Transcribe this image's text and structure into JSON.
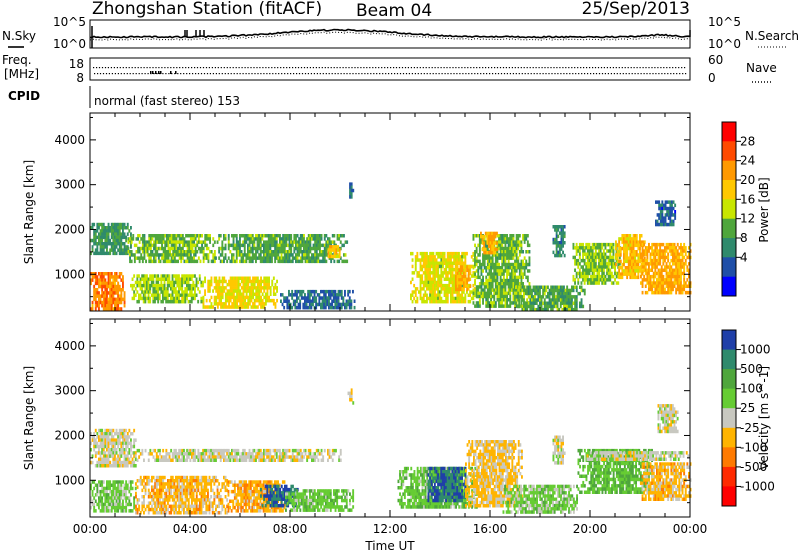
{
  "header": {
    "station": "Zhongshan Station (fitACF)",
    "beam": "Beam 04",
    "date": "25/Sep/2013"
  },
  "top_panels": {
    "nsky_label": "N.Sky",
    "nsearch_label": "N.Search",
    "noise_ticks_left": [
      "10^5",
      "10^0"
    ],
    "noise_ticks_right": [
      "10^5",
      "10^0"
    ],
    "freq_label_line1": "Freq.",
    "freq_label_line2": "[MHz]",
    "freq_ticks": [
      "18",
      "8"
    ],
    "nave_label": "Nave",
    "nave_ticks": [
      "60",
      "0"
    ],
    "cpid_label": "CPID",
    "cpid_text": "normal (fast stereo) 153"
  },
  "range_panels": {
    "ylabel": "Slant Range [km]",
    "yticks": [
      "4000",
      "3000",
      "2000",
      "1000"
    ]
  },
  "power_bar": {
    "label": "Power [dB]",
    "ticks": [
      "28",
      "24",
      "20",
      "16",
      "12",
      "8",
      "4"
    ],
    "colors": [
      "#ff0000",
      "#ff4a00",
      "#ff9900",
      "#ffc800",
      "#c8e600",
      "#4fa63c",
      "#2f8a6c",
      "#1f4fa8",
      "#0000ff"
    ]
  },
  "velocity_bar": {
    "label": "Velocity [m s^-1]",
    "ticks": [
      "1000",
      "500",
      "100",
      "25",
      "-25",
      "-100",
      "-500",
      "-1000"
    ],
    "colors": [
      "#1f3fa8",
      "#2f8a6c",
      "#4fa63c",
      "#66cc33",
      "#c8c8c0",
      "#ffb400",
      "#ff7a00",
      "#ff2a00",
      "#ff0000"
    ]
  },
  "xaxis": {
    "ticks": [
      "00:00",
      "04:00",
      "08:00",
      "12:00",
      "16:00",
      "20:00",
      "00:00"
    ],
    "label": "Time UT"
  },
  "chart_data": [
    {
      "type": "heatmap",
      "name": "power",
      "xlabel": "Time UT",
      "ylabel": "Slant Range [km]",
      "xlim": [
        0,
        24
      ],
      "ylim": [
        180,
        4600
      ],
      "colorbar_label": "Power [dB]",
      "clim": [
        0,
        32
      ],
      "regions": [
        {
          "t0": 0.0,
          "t1": 1.6,
          "r0": 1500,
          "r1": 2150,
          "v": 10
        },
        {
          "t0": 0.0,
          "t1": 1.4,
          "r0": 250,
          "r1": 1050,
          "v": 24
        },
        {
          "t0": 1.6,
          "t1": 4.5,
          "r0": 400,
          "r1": 1000,
          "v": 15
        },
        {
          "t0": 1.5,
          "t1": 5.0,
          "r0": 1300,
          "r1": 1900,
          "v": 13
        },
        {
          "t0": 4.5,
          "t1": 7.5,
          "r0": 250,
          "r1": 950,
          "v": 18
        },
        {
          "t0": 5.0,
          "t1": 10.3,
          "r0": 1300,
          "r1": 1900,
          "v": 12
        },
        {
          "t0": 9.5,
          "t1": 10.0,
          "r0": 1400,
          "r1": 1650,
          "v": 20
        },
        {
          "t0": 7.6,
          "t1": 10.6,
          "r0": 250,
          "r1": 650,
          "v": 7
        },
        {
          "t0": 10.3,
          "t1": 10.5,
          "r0": 2750,
          "r1": 3050,
          "v": 7
        },
        {
          "t0": 12.8,
          "t1": 15.4,
          "r0": 400,
          "r1": 1500,
          "v": 17
        },
        {
          "t0": 14.6,
          "t1": 15.2,
          "r0": 650,
          "r1": 1200,
          "v": 22
        },
        {
          "t0": 15.3,
          "t1": 17.6,
          "r0": 300,
          "r1": 1900,
          "v": 13
        },
        {
          "t0": 15.6,
          "t1": 16.3,
          "r0": 1500,
          "r1": 1950,
          "v": 22
        },
        {
          "t0": 17.0,
          "t1": 19.8,
          "r0": 200,
          "r1": 750,
          "v": 12
        },
        {
          "t0": 18.5,
          "t1": 19.0,
          "r0": 1400,
          "r1": 2100,
          "v": 9
        },
        {
          "t0": 19.3,
          "t1": 21.2,
          "r0": 800,
          "r1": 1700,
          "v": 14
        },
        {
          "t0": 21.0,
          "t1": 22.2,
          "r0": 900,
          "r1": 1900,
          "v": 20
        },
        {
          "t0": 22.0,
          "t1": 24.0,
          "r0": 600,
          "r1": 1700,
          "v": 22
        },
        {
          "t0": 22.6,
          "t1": 23.4,
          "r0": 2100,
          "r1": 2650,
          "v": 6
        }
      ]
    },
    {
      "type": "heatmap",
      "name": "velocity",
      "xlabel": "Time UT",
      "ylabel": "Slant Range [km]",
      "xlim": [
        0,
        24
      ],
      "ylim": [
        180,
        4600
      ],
      "colorbar_label": "Velocity [m s^-1]",
      "clim": [
        -1000,
        1000
      ],
      "regions": [
        {
          "t0": 0.0,
          "t1": 1.8,
          "r0": 1350,
          "r1": 2150,
          "v": 0
        },
        {
          "t0": 1.8,
          "t1": 10.0,
          "r0": 1450,
          "r1": 1700,
          "v": 0
        },
        {
          "t0": 0.0,
          "t1": 1.8,
          "r0": 300,
          "r1": 1000,
          "v": 200
        },
        {
          "t0": 1.8,
          "t1": 5.5,
          "r0": 300,
          "r1": 1100,
          "v": -200
        },
        {
          "t0": 5.5,
          "t1": 7.8,
          "r0": 300,
          "r1": 1000,
          "v": -250
        },
        {
          "t0": 6.8,
          "t1": 8.4,
          "r0": 400,
          "r1": 900,
          "v": 800
        },
        {
          "t0": 7.8,
          "t1": 10.5,
          "r0": 300,
          "r1": 800,
          "v": 250
        },
        {
          "t0": 10.3,
          "t1": 10.5,
          "r0": 2750,
          "r1": 3050,
          "v": 0
        },
        {
          "t0": 12.3,
          "t1": 15.5,
          "r0": 400,
          "r1": 1300,
          "v": 250
        },
        {
          "t0": 13.5,
          "t1": 15.0,
          "r0": 550,
          "r1": 1300,
          "v": 800
        },
        {
          "t0": 15.0,
          "t1": 17.3,
          "r0": 400,
          "r1": 1900,
          "v": -150
        },
        {
          "t0": 16.5,
          "t1": 19.5,
          "r0": 300,
          "r1": 900,
          "v": 200
        },
        {
          "t0": 18.5,
          "t1": 19.0,
          "r0": 1400,
          "r1": 2000,
          "v": 0
        },
        {
          "t0": 19.5,
          "t1": 22.5,
          "r0": 700,
          "r1": 1700,
          "v": 300
        },
        {
          "t0": 19.8,
          "t1": 24.0,
          "r0": 1450,
          "r1": 1650,
          "v": 0
        },
        {
          "t0": 22.0,
          "t1": 24.0,
          "r0": 600,
          "r1": 1400,
          "v": -200
        },
        {
          "t0": 22.7,
          "t1": 23.5,
          "r0": 2100,
          "r1": 2700,
          "v": 0
        }
      ]
    }
  ]
}
